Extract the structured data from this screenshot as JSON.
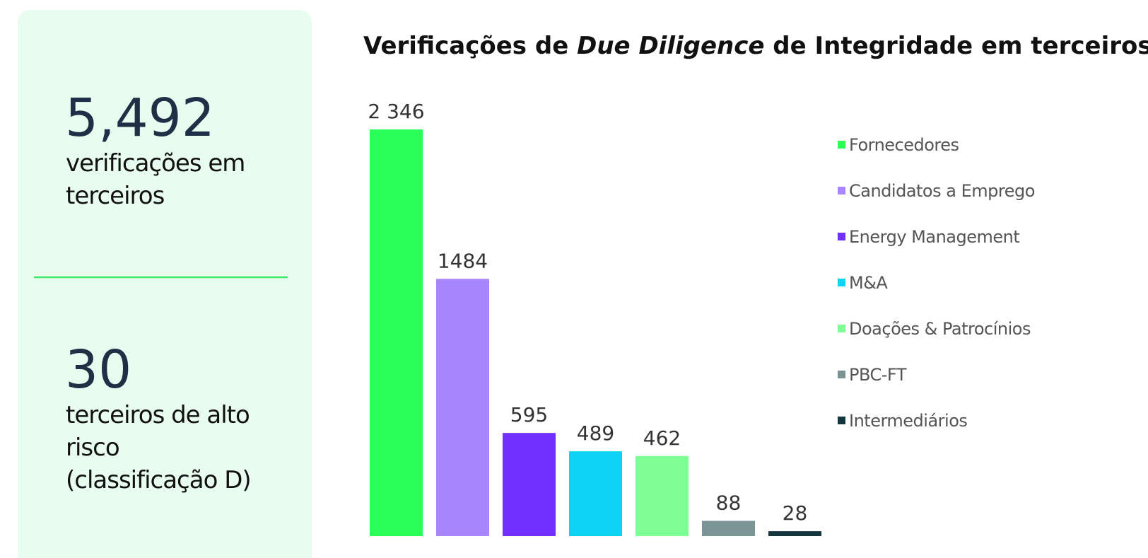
{
  "card": {
    "stats": [
      {
        "number": "5,492",
        "lines": [
          "verificações em",
          "terceiros"
        ]
      },
      {
        "number": "30",
        "lines": [
          "terceiros de alto",
          "risco",
          "(classificação D)"
        ]
      }
    ]
  },
  "chart_data": {
    "type": "bar",
    "title": {
      "start": "Verificações de ",
      "emphasis": "Due Diligence",
      "end": " de Integridade em terceiros"
    },
    "categories": [
      "Fornecedores",
      "Candidatos a Emprego",
      "Energy Management",
      "M&A",
      "Doações & Patrocínios",
      "PBC-FT",
      "Intermediários"
    ],
    "values": [
      2346,
      1484,
      595,
      489,
      462,
      88,
      28
    ],
    "value_labels": [
      "2 346",
      "1484",
      "595",
      "489",
      "462",
      "88",
      "28"
    ],
    "colors": [
      "#2bff57",
      "#a886ff",
      "#7130fd",
      "#0fd3f5",
      "#80ff94",
      "#7b9597",
      "#12363b"
    ],
    "legend": "right"
  }
}
